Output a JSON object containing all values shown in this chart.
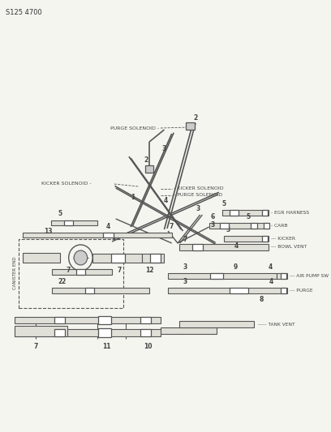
{
  "title": "S125 4700",
  "bg": "#f5f5f0",
  "lc": "#555555",
  "tc": "#444444",
  "labels": {
    "purge_solenoid_top": "PURGE SOLENOID",
    "kicker_solenoid_left": "KICKER SOLENOID",
    "kicker_solenoid_right": "KICKER SOLENOID",
    "purge_solenoid_right": "PURGE SOLENOID",
    "egr_harness": "EGR HARNESS",
    "carb": "CARB",
    "kicker": "KICKER",
    "bowl_vent": "BOWL VENT",
    "air_pump_sw": "AIR PUMP SW",
    "purge": "PURGE",
    "tank_vent": "TANK VENT",
    "canister_end": "CANISTER END"
  }
}
